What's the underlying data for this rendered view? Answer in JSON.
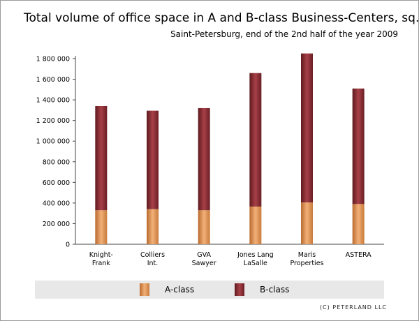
{
  "chart_data": {
    "type": "bar",
    "stacked": true,
    "title": "Total volume of office space in A and B-class Business-Centers, sq. m.",
    "subtitle": "Saint-Petersburg, end of the 2nd half of the year 2009",
    "categories": [
      [
        "Knight-",
        "Frank"
      ],
      [
        "Colliers",
        "Int."
      ],
      [
        "GVA",
        "Sawyer"
      ],
      [
        "Jones Lang",
        "LaSalle"
      ],
      [
        "Maris",
        "Properties"
      ],
      [
        "ASTERA"
      ]
    ],
    "series": [
      {
        "name": "A-class",
        "color": "#e39a5c",
        "values": [
          330000,
          340000,
          330000,
          365000,
          405000,
          390000
        ]
      },
      {
        "name": "B-class",
        "color": "#8c2a30",
        "values": [
          1010000,
          955000,
          990000,
          1295000,
          1445000,
          1120000
        ]
      }
    ],
    "ylim": [
      0,
      1800000
    ],
    "yticks": [
      "0",
      "200 000",
      "400 000",
      "600 000",
      "800 000",
      "1 000 000",
      "1 200 000",
      "1 400 000",
      "1 600 000",
      "1 800 000"
    ],
    "ytick_values": [
      0,
      200000,
      400000,
      600000,
      800000,
      1000000,
      1200000,
      1400000,
      1600000,
      1800000
    ],
    "grid": false,
    "legend_position": "bottom"
  },
  "copyright": "(C) PETERLAND LLC"
}
